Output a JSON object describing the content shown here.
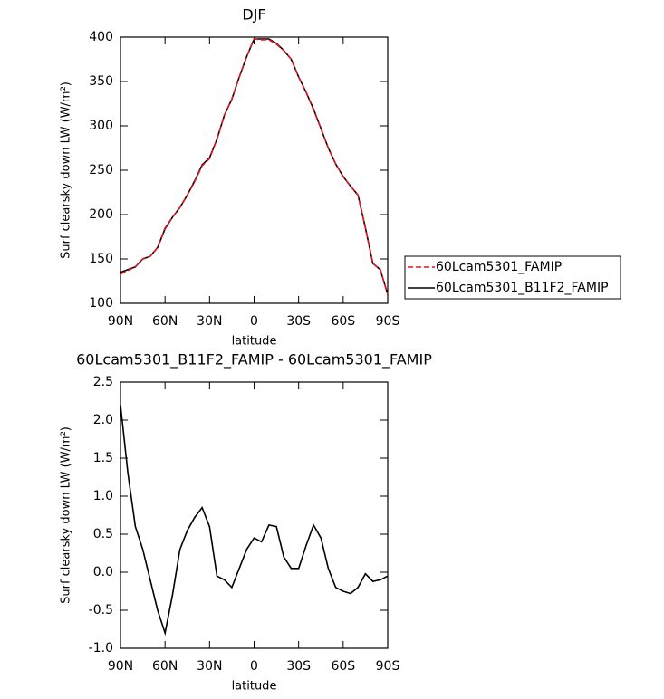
{
  "chart_data": [
    {
      "type": "line",
      "title": "DJF",
      "xlabel": "latitude",
      "ylabel": "Surf clearsky down LW (W/m²)",
      "x": [
        90,
        85,
        80,
        75,
        70,
        65,
        60,
        55,
        50,
        45,
        40,
        35,
        30,
        25,
        20,
        15,
        10,
        5,
        0,
        -5,
        -10,
        -15,
        -20,
        -25,
        -30,
        -35,
        -40,
        -45,
        -50,
        -55,
        -60,
        -65,
        -70,
        -75,
        -80,
        -85,
        -90
      ],
      "series": [
        {
          "name": "60Lcam5301_FAMIP",
          "color": "#e8141e",
          "dash": true,
          "values": [
            133,
            137,
            141,
            150,
            153,
            163,
            185,
            197,
            208,
            222,
            237,
            255,
            263,
            285,
            312,
            330,
            355,
            378,
            398,
            397,
            397,
            392,
            385,
            375,
            355,
            338,
            318,
            297,
            275,
            257,
            243,
            232,
            222,
            185,
            145,
            138,
            110
          ]
        },
        {
          "name": "60Lcam5301_B11F2_FAMIP",
          "color": "#000000",
          "dash": false,
          "values": [
            135,
            138,
            141,
            150,
            153,
            163,
            184,
            197,
            208,
            222,
            238,
            256,
            264,
            285,
            312,
            330,
            355,
            378,
            398,
            398,
            398,
            393,
            385,
            375,
            355,
            338,
            319,
            297,
            275,
            257,
            243,
            232,
            222,
            185,
            145,
            138,
            110
          ]
        }
      ],
      "xlim": [
        90,
        -90
      ],
      "xticks": [
        {
          "value": 90,
          "label": "90N"
        },
        {
          "value": 60,
          "label": "60N"
        },
        {
          "value": 30,
          "label": "30N"
        },
        0,
        {
          "value": -30,
          "label": "30S"
        },
        {
          "value": -60,
          "label": "60S"
        },
        {
          "value": -90,
          "label": "90S"
        }
      ],
      "ylim": [
        100,
        400
      ],
      "yticks": [
        100,
        150,
        200,
        250,
        300,
        350,
        400
      ],
      "legend": "right"
    },
    {
      "type": "line",
      "title": "60Lcam5301_B11F2_FAMIP - 60Lcam5301_FAMIP",
      "xlabel": "latitude",
      "ylabel": "Surf clearsky down LW (W/m²)",
      "x": [
        90,
        85,
        80,
        75,
        70,
        65,
        60,
        55,
        50,
        45,
        40,
        35,
        30,
        25,
        20,
        15,
        10,
        5,
        0,
        -5,
        -10,
        -15,
        -20,
        -25,
        -30,
        -35,
        -40,
        -45,
        -50,
        -55,
        -60,
        -65,
        -70,
        -75,
        -80,
        -85,
        -90
      ],
      "series": [
        {
          "color": "#000000",
          "dash": false,
          "values": [
            2.2,
            1.3,
            0.6,
            0.3,
            -0.1,
            -0.5,
            -0.8,
            -0.3,
            0.3,
            0.55,
            0.72,
            0.85,
            0.6,
            -0.05,
            -0.1,
            -0.2,
            0.05,
            0.3,
            0.45,
            0.4,
            0.62,
            0.6,
            0.2,
            0.05,
            0.05,
            0.35,
            0.62,
            0.45,
            0.05,
            -0.2,
            -0.25,
            -0.28,
            -0.2,
            -0.02,
            -0.12,
            -0.1,
            -0.05
          ]
        }
      ],
      "xlim": [
        90,
        -90
      ],
      "xticks": [
        {
          "value": 90,
          "label": "90N"
        },
        {
          "value": 60,
          "label": "60N"
        },
        {
          "value": 30,
          "label": "30N"
        },
        0,
        {
          "value": -30,
          "label": "30S"
        },
        {
          "value": -60,
          "label": "60S"
        },
        {
          "value": -90,
          "label": "90S"
        }
      ],
      "ylim": [
        -1.0,
        2.5
      ],
      "yticks": [
        {
          "value": -1.0,
          "label": "-1.0"
        },
        -0.5,
        {
          "value": 0.0,
          "label": "0.0"
        },
        0.5,
        {
          "value": 1.0,
          "label": "1.0"
        },
        1.5,
        {
          "value": 2.0,
          "label": "2.0"
        },
        2.5
      ]
    }
  ]
}
